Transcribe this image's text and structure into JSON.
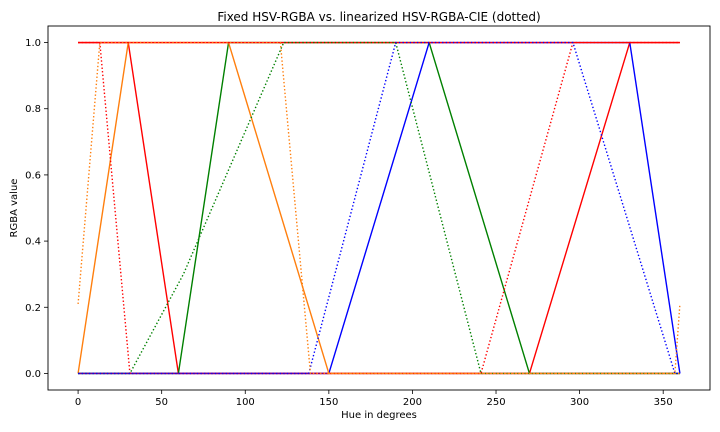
{
  "chart_data": {
    "type": "line",
    "title": "Fixed HSV-RGBA vs. linearized HSV-RGBA-CIE (dotted)",
    "xlabel": "Hue in degrees",
    "ylabel": "RGBA value",
    "xlim": [
      -18,
      378
    ],
    "ylim": [
      -0.05,
      1.05
    ],
    "xticks": [
      0,
      50,
      100,
      150,
      200,
      250,
      300,
      350
    ],
    "yticks": [
      0.0,
      0.2,
      0.4,
      0.6,
      0.8,
      1.0
    ],
    "xtick_labels": [
      "0",
      "50",
      "100",
      "150",
      "200",
      "250",
      "300",
      "350"
    ],
    "ytick_labels": [
      "0.0",
      "0.2",
      "0.4",
      "0.6",
      "0.8",
      "1.0"
    ],
    "grid": false,
    "legend": "none",
    "series": [
      {
        "color": "#ff0000",
        "style": "solid",
        "x": [
          0,
          30,
          60,
          270,
          330,
          360
        ],
        "y": [
          1,
          1,
          0,
          0,
          1,
          1
        ]
      },
      {
        "color": "#008000",
        "style": "solid",
        "x": [
          0,
          60,
          90,
          210,
          270,
          360
        ],
        "y": [
          0,
          0,
          1,
          1,
          0,
          0
        ]
      },
      {
        "color": "#0000ff",
        "style": "solid",
        "x": [
          0,
          150,
          210,
          330,
          360
        ],
        "y": [
          0,
          0,
          1,
          1,
          0
        ]
      },
      {
        "color": "#800080",
        "style": "solid",
        "x": [
          0,
          360
        ],
        "y": [
          0,
          0
        ]
      },
      {
        "color": "#ff7f0e",
        "style": "solid",
        "x": [
          0,
          30,
          90,
          150,
          360
        ],
        "y": [
          0,
          1,
          1,
          0,
          0
        ]
      },
      {
        "color": "#ff0000",
        "style": "solid",
        "x": [
          0,
          360
        ],
        "y": [
          1,
          1
        ]
      },
      {
        "color": "#ff0000",
        "style": "dotted",
        "x": [
          0,
          13,
          31,
          241,
          296,
          360
        ],
        "y": [
          1,
          1,
          0,
          0,
          1,
          1
        ]
      },
      {
        "color": "#008000",
        "style": "dotted",
        "x": [
          0,
          31,
          63,
          123,
          190,
          241,
          360
        ],
        "y": [
          0,
          0,
          0.3,
          1,
          1,
          0,
          0
        ]
      },
      {
        "color": "#0000ff",
        "style": "dotted",
        "x": [
          0,
          138,
          190,
          296,
          357,
          360
        ],
        "y": [
          0,
          0,
          1,
          1,
          0,
          0
        ]
      },
      {
        "color": "#ff7f0e",
        "style": "dotted",
        "x": [
          0,
          13,
          121,
          139,
          357,
          360
        ],
        "y": [
          0.21,
          1,
          1,
          0,
          0,
          0.21
        ]
      }
    ]
  }
}
